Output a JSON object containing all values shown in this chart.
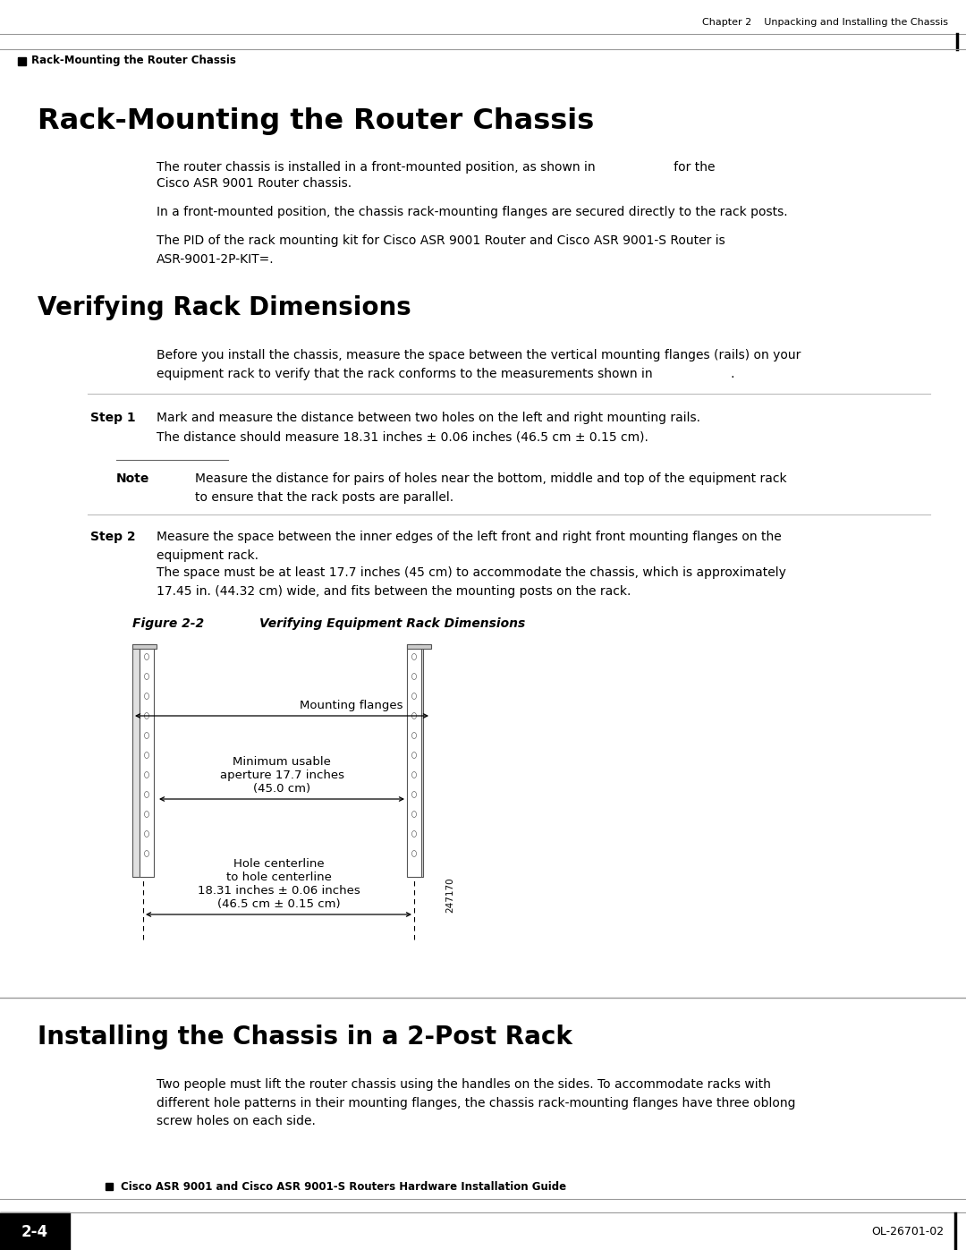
{
  "header_right": "Chapter 2    Unpacking and Installing the Chassis",
  "header_left": "Rack-Mounting the Router Chassis",
  "section1_title": "Rack-Mounting the Router Chassis",
  "section1_para1a": "The router chassis is installed in a front-mounted position, as shown in",
  "section1_para1b": "for the",
  "section1_para1c": "Cisco ASR 9001 Router chassis.",
  "section1_para2": "In a front-mounted position, the chassis rack-mounting flanges are secured directly to the rack posts.",
  "section1_para3": "The PID of the rack mounting kit for Cisco ASR 9001 Router and Cisco ASR 9001-S Router is\nASR-9001-2P-KIT=.",
  "section2_title": "Verifying Rack Dimensions",
  "section2_para1": "Before you install the chassis, measure the space between the vertical mounting flanges (rails) on your\nequipment rack to verify that the rack conforms to the measurements shown in                    .",
  "step1_label": "Step 1",
  "step1_text": "Mark and measure the distance between two holes on the left and right mounting rails.",
  "step1_sub": "The distance should measure 18.31 inches ± 0.06 inches (46.5 cm ± 0.15 cm).",
  "note_label": "Note",
  "note_text": "Measure the distance for pairs of holes near the bottom, middle and top of the equipment rack\nto ensure that the rack posts are parallel.",
  "step2_label": "Step 2",
  "step2_text": "Measure the space between the inner edges of the left front and right front mounting flanges on the\nequipment rack.",
  "step2_sub": "The space must be at least 17.7 inches (45 cm) to accommodate the chassis, which is approximately\n17.45 in. (44.32 cm) wide, and fits between the mounting posts on the rack.",
  "fig_label": "Figure 2-2",
  "fig_title": "Verifying Equipment Rack Dimensions",
  "fig_annot1": "Mounting flanges",
  "fig_annot2": "Minimum usable\naperture 17.7 inches\n(45.0 cm)",
  "fig_annot3": "Hole centerline\nto hole centerline\n18.31 inches ± 0.06 inches\n(46.5 cm ± 0.15 cm)",
  "fig_watermark": "247170",
  "section3_title": "Installing the Chassis in a 2-Post Rack",
  "section3_para1": "Two people must lift the router chassis using the handles on the sides. To accommodate racks with\ndifferent hole patterns in their mounting flanges, the chassis rack-mounting flanges have three oblong\nscrew holes on each side.",
  "footer_left_box": "2-4",
  "footer_center": "Cisco ASR 9001 and Cisco ASR 9001-S Routers Hardware Installation Guide",
  "footer_right": "OL-26701-02",
  "bg_color": "#ffffff",
  "text_color": "#000000"
}
